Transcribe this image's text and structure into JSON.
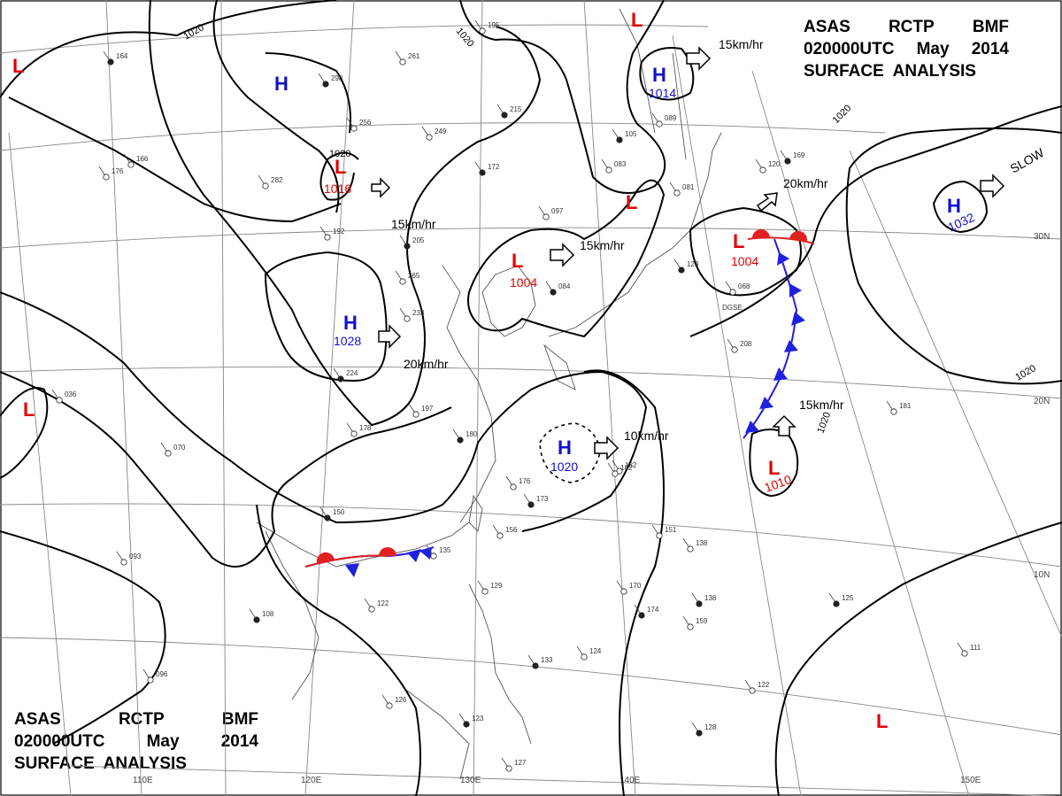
{
  "header": {
    "agency": "ASAS",
    "center": "RCTP",
    "unit": "BMF",
    "time": "020000UTC",
    "month": "May",
    "year": "2014",
    "product": "SURFACE  ANALYSIS"
  },
  "footer": {
    "agency": "ASAS",
    "center": "RCTP",
    "unit": "BMF",
    "time": "020000UTC",
    "month": "May",
    "year": "2014",
    "product": "SURFACE  ANALYSIS"
  },
  "colors": {
    "high": "#1010d0",
    "low": "#e00000",
    "isobar": "#000000",
    "coast": "#555555",
    "grid": "#888888"
  },
  "longitude_labels": [
    "110E",
    "120E",
    "130E",
    "140E",
    "150E"
  ],
  "latitude_labels": [
    "30N",
    "20N",
    "10N"
  ],
  "isobar_labels": [
    "1020",
    "1020",
    "1020",
    "1020",
    "1020",
    "1020"
  ],
  "pressure_centers": [
    {
      "type": "H",
      "value": ""
    },
    {
      "type": "L",
      "value": "1016"
    },
    {
      "type": "H",
      "value": "1028"
    },
    {
      "type": "L",
      "value": "1004"
    },
    {
      "type": "L",
      "value": ""
    },
    {
      "type": "H",
      "value": "1014"
    },
    {
      "type": "L",
      "value": ""
    },
    {
      "type": "L",
      "value": "1004"
    },
    {
      "type": "H",
      "value": "1032"
    },
    {
      "type": "H",
      "value": "1020"
    },
    {
      "type": "L",
      "value": "1010"
    },
    {
      "type": "L",
      "value": ""
    },
    {
      "type": "L",
      "value": ""
    },
    {
      "type": "L",
      "value": ""
    }
  ],
  "motion_labels": [
    "15km/hr",
    "15km/hr",
    "15km/hr",
    "20km/hr",
    "20km/hr",
    "10km/hr",
    "15km/hr",
    "SLOW"
  ],
  "station_values": [
    "298",
    "256",
    "249",
    "215",
    "195",
    "261",
    "172",
    "282",
    "192",
    "205",
    "265",
    "233",
    "224",
    "197",
    "178",
    "180",
    "182",
    "176",
    "173",
    "156",
    "135",
    "150",
    "093",
    "122",
    "108",
    "096",
    "126",
    "123",
    "127",
    "129",
    "133",
    "124",
    "170",
    "138",
    "151",
    "182",
    "105",
    "089",
    "081",
    "123",
    "097",
    "083",
    "084",
    "166",
    "176",
    "164",
    "036",
    "070",
    "125",
    "111",
    "122",
    "128",
    "181",
    "208",
    "174",
    "159",
    "138",
    "169",
    "120",
    "068"
  ],
  "surface_city_code": "DGSE",
  "center_label": "1020"
}
